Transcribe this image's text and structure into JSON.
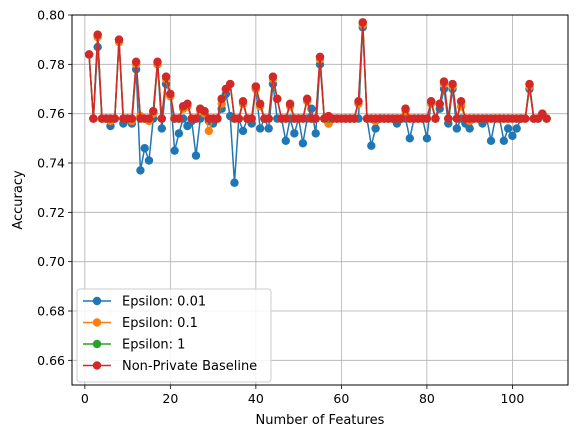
{
  "chart_data": {
    "type": "line",
    "xlabel": "Number of Features",
    "ylabel": "Accuracy",
    "xlim": [
      -3,
      113
    ],
    "ylim": [
      0.65,
      0.8
    ],
    "xticks": [
      0,
      20,
      40,
      60,
      80,
      100
    ],
    "yticks": [
      0.66,
      0.68,
      0.7,
      0.72,
      0.74,
      0.76,
      0.78,
      0.8
    ],
    "grid": true,
    "legend_position": "lower-left",
    "x": [
      1,
      2,
      3,
      4,
      5,
      6,
      7,
      8,
      9,
      10,
      11,
      12,
      13,
      14,
      15,
      16,
      17,
      18,
      19,
      20,
      21,
      22,
      23,
      24,
      25,
      26,
      27,
      28,
      29,
      30,
      31,
      32,
      33,
      34,
      35,
      36,
      37,
      38,
      39,
      40,
      41,
      42,
      43,
      44,
      45,
      46,
      47,
      48,
      49,
      50,
      51,
      52,
      53,
      54,
      55,
      56,
      57,
      58,
      59,
      60,
      61,
      62,
      63,
      64,
      65,
      66,
      67,
      68,
      69,
      70,
      71,
      72,
      73,
      74,
      75,
      76,
      77,
      78,
      79,
      80,
      81,
      82,
      83,
      84,
      85,
      86,
      87,
      88,
      89,
      90,
      91,
      92,
      93,
      94,
      95,
      96,
      97,
      98,
      99,
      100,
      101,
      102,
      103,
      104,
      105,
      106,
      107,
      108
    ],
    "series": [
      {
        "name": "Epsilon: 0.01",
        "color": "#1f77b4",
        "values": [
          0.784,
          0.758,
          0.787,
          0.758,
          0.758,
          0.755,
          0.758,
          0.79,
          0.756,
          0.758,
          0.756,
          0.778,
          0.737,
          0.746,
          0.741,
          0.758,
          0.78,
          0.754,
          0.772,
          0.768,
          0.745,
          0.752,
          0.758,
          0.755,
          0.757,
          0.743,
          0.758,
          0.76,
          0.757,
          0.756,
          0.758,
          0.762,
          0.768,
          0.759,
          0.732,
          0.758,
          0.753,
          0.758,
          0.756,
          0.77,
          0.754,
          0.758,
          0.754,
          0.772,
          0.758,
          0.758,
          0.749,
          0.758,
          0.752,
          0.758,
          0.748,
          0.758,
          0.762,
          0.752,
          0.78,
          0.758,
          0.756,
          0.758,
          0.758,
          0.758,
          0.758,
          0.758,
          0.758,
          0.758,
          0.795,
          0.758,
          0.747,
          0.754,
          0.758,
          0.758,
          0.758,
          0.758,
          0.756,
          0.758,
          0.758,
          0.75,
          0.758,
          0.758,
          0.758,
          0.75,
          0.765,
          0.758,
          0.762,
          0.77,
          0.756,
          0.77,
          0.754,
          0.758,
          0.756,
          0.754,
          0.758,
          0.758,
          0.756,
          0.758,
          0.749,
          0.758,
          0.758,
          0.749,
          0.754,
          0.751,
          0.754,
          0.758,
          0.758,
          0.77,
          0.758,
          0.758,
          0.76,
          0.758
        ]
      },
      {
        "name": "Epsilon: 0.1",
        "color": "#ff7f0e",
        "values": [
          0.784,
          0.758,
          0.791,
          0.758,
          0.758,
          0.757,
          0.758,
          0.789,
          0.758,
          0.758,
          0.757,
          0.78,
          0.759,
          0.758,
          0.757,
          0.76,
          0.78,
          0.758,
          0.774,
          0.767,
          0.758,
          0.758,
          0.762,
          0.763,
          0.758,
          0.758,
          0.761,
          0.76,
          0.753,
          0.758,
          0.758,
          0.764,
          0.77,
          0.772,
          0.758,
          0.758,
          0.764,
          0.758,
          0.758,
          0.77,
          0.763,
          0.758,
          0.758,
          0.774,
          0.766,
          0.758,
          0.758,
          0.763,
          0.758,
          0.758,
          0.758,
          0.765,
          0.758,
          0.758,
          0.782,
          0.758,
          0.756,
          0.758,
          0.758,
          0.758,
          0.758,
          0.758,
          0.758,
          0.764,
          0.796,
          0.758,
          0.758,
          0.757,
          0.758,
          0.758,
          0.758,
          0.758,
          0.758,
          0.758,
          0.761,
          0.758,
          0.758,
          0.758,
          0.758,
          0.758,
          0.764,
          0.758,
          0.764,
          0.772,
          0.758,
          0.771,
          0.758,
          0.763,
          0.758,
          0.757,
          0.758,
          0.758,
          0.758,
          0.758,
          0.758,
          0.758,
          0.758,
          0.758,
          0.758,
          0.758,
          0.758,
          0.758,
          0.758,
          0.771,
          0.758,
          0.758,
          0.76,
          0.758
        ]
      },
      {
        "name": "Epsilon: 1",
        "color": "#2ca02c",
        "values": [
          0.784,
          0.758,
          0.792,
          0.758,
          0.758,
          0.758,
          0.758,
          0.79,
          0.758,
          0.758,
          0.758,
          0.781,
          0.758,
          0.758,
          0.758,
          0.761,
          0.781,
          0.758,
          0.775,
          0.768,
          0.758,
          0.758,
          0.763,
          0.764,
          0.758,
          0.758,
          0.762,
          0.761,
          0.758,
          0.758,
          0.758,
          0.766,
          0.77,
          0.772,
          0.758,
          0.758,
          0.765,
          0.758,
          0.758,
          0.771,
          0.764,
          0.758,
          0.758,
          0.775,
          0.766,
          0.758,
          0.758,
          0.764,
          0.758,
          0.758,
          0.758,
          0.766,
          0.758,
          0.758,
          0.783,
          0.758,
          0.758,
          0.758,
          0.758,
          0.758,
          0.758,
          0.758,
          0.758,
          0.765,
          0.797,
          0.758,
          0.758,
          0.758,
          0.758,
          0.758,
          0.758,
          0.758,
          0.758,
          0.758,
          0.762,
          0.758,
          0.758,
          0.758,
          0.758,
          0.758,
          0.765,
          0.758,
          0.764,
          0.773,
          0.758,
          0.772,
          0.758,
          0.765,
          0.758,
          0.758,
          0.758,
          0.758,
          0.758,
          0.758,
          0.758,
          0.758,
          0.758,
          0.758,
          0.758,
          0.758,
          0.758,
          0.758,
          0.758,
          0.772,
          0.758,
          0.758,
          0.76,
          0.758
        ]
      },
      {
        "name": "Non-Private Baseline",
        "color": "#d62728",
        "values": [
          0.784,
          0.758,
          0.792,
          0.758,
          0.758,
          0.758,
          0.758,
          0.79,
          0.758,
          0.758,
          0.758,
          0.781,
          0.758,
          0.758,
          0.758,
          0.761,
          0.781,
          0.758,
          0.775,
          0.768,
          0.758,
          0.758,
          0.763,
          0.764,
          0.758,
          0.758,
          0.762,
          0.761,
          0.758,
          0.758,
          0.758,
          0.766,
          0.77,
          0.772,
          0.758,
          0.758,
          0.765,
          0.758,
          0.758,
          0.771,
          0.764,
          0.758,
          0.758,
          0.775,
          0.766,
          0.758,
          0.758,
          0.764,
          0.758,
          0.758,
          0.758,
          0.766,
          0.758,
          0.758,
          0.783,
          0.758,
          0.759,
          0.758,
          0.758,
          0.758,
          0.758,
          0.758,
          0.758,
          0.765,
          0.797,
          0.758,
          0.758,
          0.758,
          0.758,
          0.758,
          0.758,
          0.758,
          0.758,
          0.758,
          0.762,
          0.758,
          0.758,
          0.758,
          0.758,
          0.758,
          0.765,
          0.758,
          0.764,
          0.773,
          0.758,
          0.772,
          0.758,
          0.765,
          0.758,
          0.758,
          0.758,
          0.758,
          0.758,
          0.758,
          0.758,
          0.758,
          0.758,
          0.758,
          0.758,
          0.758,
          0.758,
          0.758,
          0.758,
          0.772,
          0.758,
          0.758,
          0.76,
          0.758
        ]
      }
    ]
  }
}
